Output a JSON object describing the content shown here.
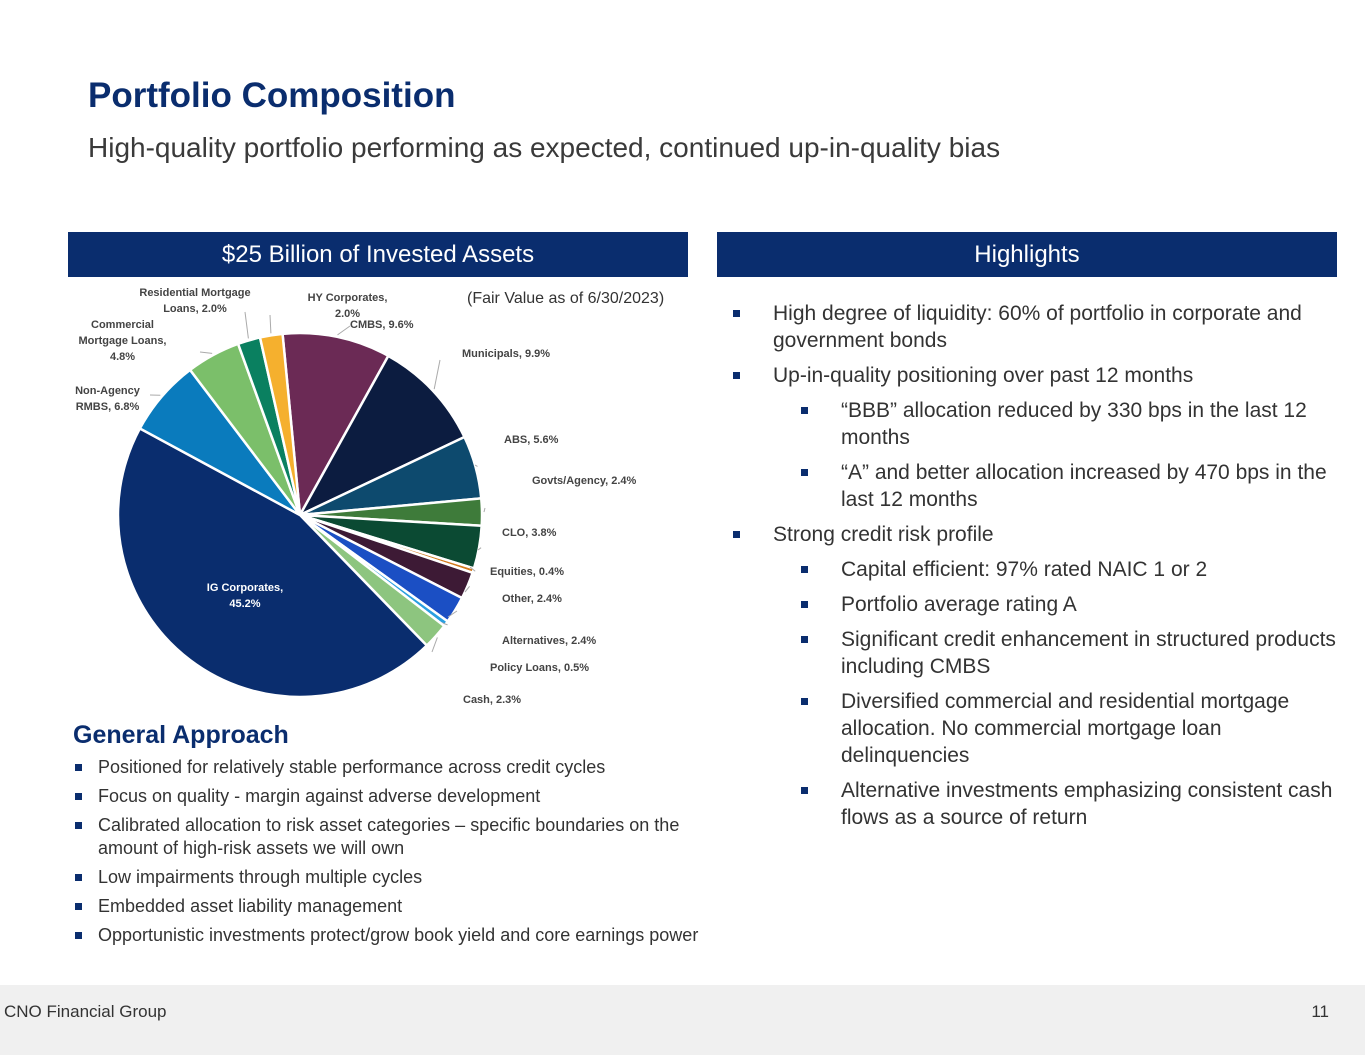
{
  "header": {
    "title": "Portfolio Composition",
    "subtitle": "High-quality portfolio performing as expected, continued up-in-quality bias"
  },
  "left_panel": {
    "title": "$25 Billion of Invested Assets",
    "note": "(Fair Value as of 6/30/2023)"
  },
  "chart_data": {
    "type": "pie",
    "title": "$25 Billion of Invested Assets",
    "unit": "%",
    "slices": [
      {
        "name": "CMBS",
        "value": 9.6,
        "label": "CMBS, 9.6%",
        "color": "#6B2A55"
      },
      {
        "name": "Municipals",
        "value": 9.9,
        "label": "Municipals, 9.9%",
        "color": "#0C1C40"
      },
      {
        "name": "ABS",
        "value": 5.6,
        "label": "ABS, 5.6%",
        "color": "#0D4A6E"
      },
      {
        "name": "Govts/Agency",
        "value": 2.4,
        "label": "Govts/Agency, 2.4%",
        "color": "#3E7B3A"
      },
      {
        "name": "CLO",
        "value": 3.8,
        "label": "CLO, 3.8%",
        "color": "#0B4A33"
      },
      {
        "name": "Equities",
        "value": 0.4,
        "label": "Equities, 0.4%",
        "color": "#D27A1E"
      },
      {
        "name": "Other",
        "value": 2.4,
        "label": "Other, 2.4%",
        "color": "#3D1A35"
      },
      {
        "name": "Alternatives",
        "value": 2.4,
        "label": "Alternatives, 2.4%",
        "color": "#1B4FC4"
      },
      {
        "name": "Policy Loans",
        "value": 0.5,
        "label": "Policy Loans, 0.5%",
        "color": "#2A9FE0"
      },
      {
        "name": "Cash",
        "value": 2.3,
        "label": "Cash, 2.3%",
        "color": "#8DC57F"
      },
      {
        "name": "IG Corporates",
        "value": 45.2,
        "label": "IG Corporates, 45.2%",
        "color": "#0A2D6E"
      },
      {
        "name": "Non-Agency RMBS",
        "value": 6.8,
        "label": "Non-Agency RMBS, 6.8%",
        "color": "#0A7BBD"
      },
      {
        "name": "Commercial Mortgage Loans",
        "value": 4.8,
        "label": "Commercial Mortgage Loans, 4.8%",
        "color": "#7BBF6A"
      },
      {
        "name": "Residential Mortgage Loans",
        "value": 2.0,
        "label": "Residential Mortgage Loans, 2.0%",
        "color": "#0A8060"
      },
      {
        "name": "HY Corporates",
        "value": 2.0,
        "label": "HY Corporates, 2.0%",
        "color": "#F5B02E"
      }
    ]
  },
  "general_approach": {
    "title": "General Approach",
    "items": [
      "Positioned for relatively stable performance across credit cycles",
      "Focus on quality - margin against adverse development",
      "Calibrated allocation to risk asset categories – specific boundaries on the amount of high-risk assets we will own",
      "Low impairments through multiple cycles",
      "Embedded asset liability management",
      "Opportunistic investments protect/grow book yield and core earnings power"
    ]
  },
  "highlights": {
    "title": "Highlights",
    "items": [
      {
        "text": "High degree of liquidity: 60% of portfolio in corporate and government bonds",
        "level": 1
      },
      {
        "text": "Up-in-quality positioning over past 12 months",
        "level": 1
      },
      {
        "text": "“BBB” allocation reduced by 330 bps in the last 12 months",
        "level": 2
      },
      {
        "text": "“A” and better allocation increased by 470 bps in the last 12 months",
        "level": 2
      },
      {
        "text": "Strong credit risk profile",
        "level": 1
      },
      {
        "text": "Capital efficient: 97% rated NAIC 1 or 2",
        "level": 2
      },
      {
        "text": "Portfolio average rating A",
        "level": 2
      },
      {
        "text": "Significant credit enhancement in structured products including CMBS",
        "level": 2
      },
      {
        "text": "Diversified commercial and residential mortgage allocation. No commercial mortgage loan delinquencies",
        "level": 2
      },
      {
        "text": "Alternative investments emphasizing consistent cash flows as a source of return",
        "level": 2
      }
    ]
  },
  "footer": {
    "company": "CNO Financial Group",
    "page": "11"
  }
}
